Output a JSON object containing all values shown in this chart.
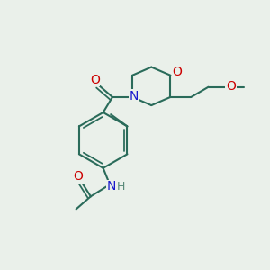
{
  "bg_color": "#eaf0ea",
  "bond_color": "#2a6b5a",
  "N_color": "#1a1acc",
  "O_color": "#cc0000",
  "H_color": "#5a8a7a",
  "lw": 1.5,
  "figsize": [
    3.0,
    3.0
  ],
  "dpi": 100,
  "xlim": [
    0,
    10
  ],
  "ylim": [
    0,
    10
  ]
}
